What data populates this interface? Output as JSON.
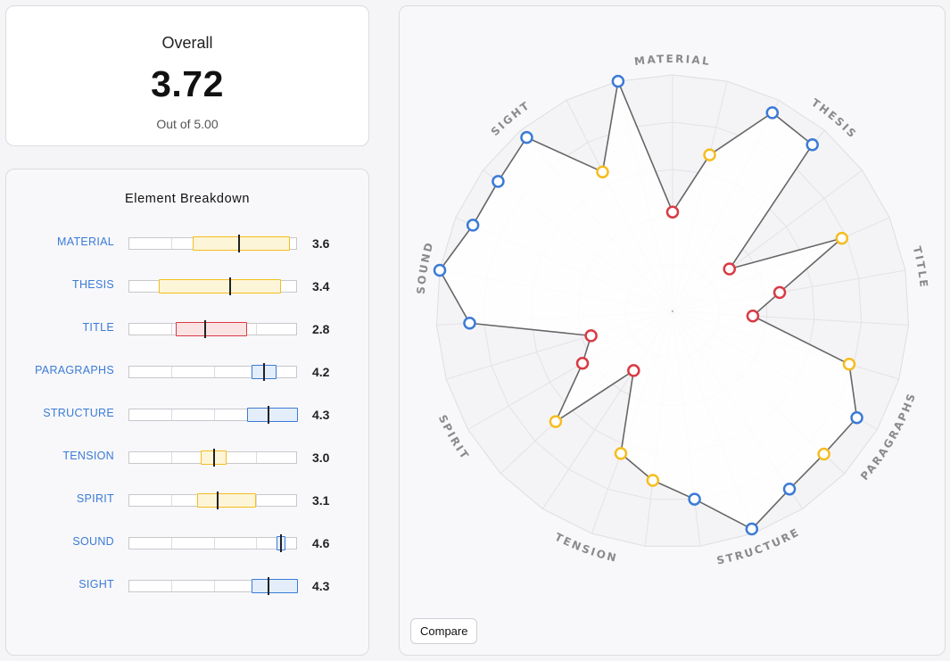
{
  "overall": {
    "title": "Overall",
    "score": "3.72",
    "subtitle": "Out of 5.00"
  },
  "breakdown": {
    "title": "Element Breakdown",
    "rows": [
      {
        "label": "MATERIAL",
        "value": "3.6",
        "min": 2.5,
        "max": 4.8,
        "mean": 3.6,
        "color": "yellow"
      },
      {
        "label": "THESIS",
        "value": "3.4",
        "min": 1.7,
        "max": 4.6,
        "mean": 3.4,
        "color": "yellow"
      },
      {
        "label": "TITLE",
        "value": "2.8",
        "min": 2.1,
        "max": 3.8,
        "mean": 2.8,
        "color": "red"
      },
      {
        "label": "PARAGRAPHS",
        "value": "4.2",
        "min": 3.9,
        "max": 4.5,
        "mean": 4.2,
        "color": "blue"
      },
      {
        "label": "STRUCTURE",
        "value": "4.3",
        "min": 3.8,
        "max": 5.0,
        "mean": 4.3,
        "color": "blue"
      },
      {
        "label": "TENSION",
        "value": "3.0",
        "min": 2.7,
        "max": 3.3,
        "mean": 3.0,
        "color": "yellow"
      },
      {
        "label": "SPIRIT",
        "value": "3.1",
        "min": 2.6,
        "max": 4.0,
        "mean": 3.1,
        "color": "yellow"
      },
      {
        "label": "SOUND",
        "value": "4.6",
        "min": 4.5,
        "max": 4.7,
        "mean": 4.6,
        "color": "blue"
      },
      {
        "label": "SIGHT",
        "value": "4.3",
        "min": 3.9,
        "max": 5.0,
        "mean": 4.3,
        "color": "blue"
      }
    ]
  },
  "radar": {
    "axes": [
      "MATERIAL",
      "THESIS",
      "TITLE",
      "PARAGRAPHS",
      "STRUCTURE",
      "TENSION",
      "SPIRIT",
      "SOUND",
      "SIGHT"
    ],
    "max": 5,
    "rings": 5,
    "spokes": 27,
    "points": [
      {
        "value": 2.1,
        "color": "red"
      },
      {
        "value": 3.4,
        "color": "yellow"
      },
      {
        "value": 4.7,
        "color": "blue"
      },
      {
        "value": 4.6,
        "color": "blue"
      },
      {
        "value": 1.5,
        "color": "red"
      },
      {
        "value": 3.9,
        "color": "yellow"
      },
      {
        "value": 2.3,
        "color": "red"
      },
      {
        "value": 1.7,
        "color": "red"
      },
      {
        "value": 3.9,
        "color": "yellow"
      },
      {
        "value": 4.5,
        "color": "blue"
      },
      {
        "value": 4.4,
        "color": "yellow"
      },
      {
        "value": 4.5,
        "color": "blue"
      },
      {
        "value": 4.9,
        "color": "blue"
      },
      {
        "value": 4.0,
        "color": "blue"
      },
      {
        "value": 3.6,
        "color": "yellow"
      },
      {
        "value": 3.2,
        "color": "yellow"
      },
      {
        "value": 1.5,
        "color": "red"
      },
      {
        "value": 3.4,
        "color": "yellow"
      },
      {
        "value": 2.2,
        "color": "red"
      },
      {
        "value": 1.8,
        "color": "red"
      },
      {
        "value": 4.3,
        "color": "blue"
      },
      {
        "value": 5.0,
        "color": "blue"
      },
      {
        "value": 4.6,
        "color": "blue"
      },
      {
        "value": 4.6,
        "color": "blue"
      },
      {
        "value": 4.8,
        "color": "blue"
      },
      {
        "value": 3.3,
        "color": "yellow"
      },
      {
        "value": 5.0,
        "color": "blue"
      }
    ]
  },
  "compare_label": "Compare",
  "colors": {
    "blue": "#3b7bd6",
    "yellow": "#f5bd1f",
    "red": "#d93a44",
    "blue_fill": "#e4eefb",
    "yellow_fill": "#fdf5d8",
    "red_fill": "#fbe3e4"
  }
}
